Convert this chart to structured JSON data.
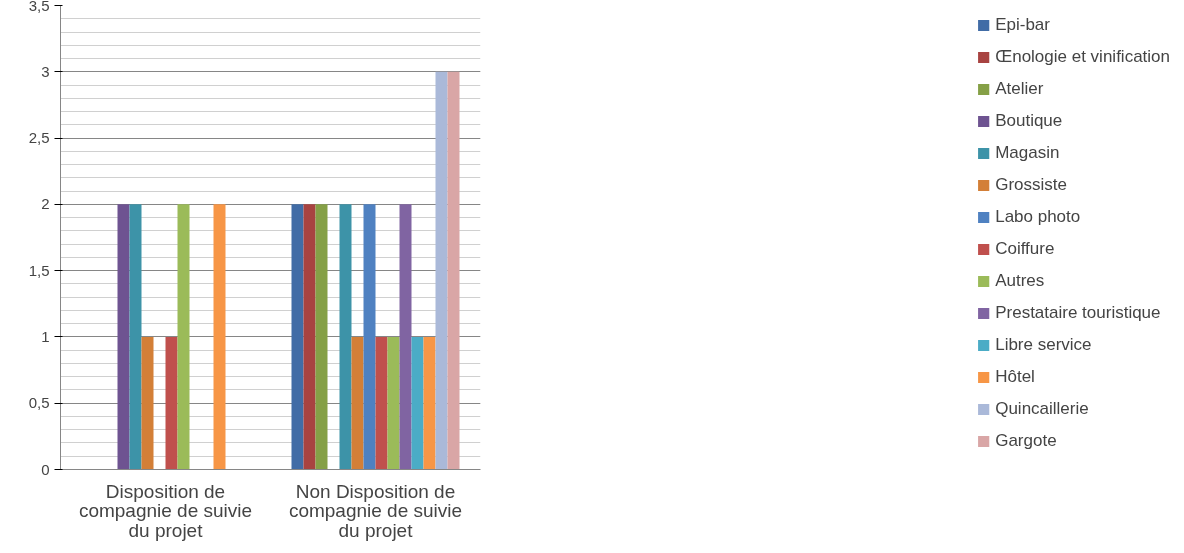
{
  "chart_data": {
    "type": "bar",
    "categories": [
      "Disposition de\ncompagnie de suivie\ndu projet",
      "Non Disposition de\ncompagnie de suivie\ndu projet"
    ],
    "series": [
      {
        "name": "Epi-bar",
        "color": "#416ca6",
        "values": [
          0,
          2
        ]
      },
      {
        "name": "Œnologie et vinification",
        "color": "#a84341",
        "values": [
          0,
          2
        ]
      },
      {
        "name": "Atelier",
        "color": "#85a046",
        "values": [
          0,
          2
        ]
      },
      {
        "name": "Boutique",
        "color": "#6e5391",
        "values": [
          2,
          0
        ]
      },
      {
        "name": "Magasin",
        "color": "#3d93a8",
        "values": [
          2,
          2
        ]
      },
      {
        "name": "Grossiste",
        "color": "#d37f37",
        "values": [
          1,
          1
        ]
      },
      {
        "name": "Labo photo",
        "color": "#4f81c1",
        "values": [
          0,
          2
        ]
      },
      {
        "name": "Coiffure",
        "color": "#c0504d",
        "values": [
          1,
          1
        ]
      },
      {
        "name": "Autres",
        "color": "#9bbb59",
        "values": [
          2,
          1
        ]
      },
      {
        "name": "Prestataire touristique",
        "color": "#8064a2",
        "values": [
          0,
          2
        ]
      },
      {
        "name": "Libre service",
        "color": "#4bacc6",
        "values": [
          0,
          1
        ]
      },
      {
        "name": "Hôtel",
        "color": "#f79646",
        "values": [
          2,
          1
        ]
      },
      {
        "name": "Quincaillerie",
        "color": "#aab9d9",
        "values": [
          0,
          3
        ]
      },
      {
        "name": "Gargote",
        "color": "#d9a6a6",
        "values": [
          0,
          3
        ]
      }
    ],
    "ylim": [
      0,
      3.5
    ],
    "yticks": [
      {
        "value": 0,
        "label": "0"
      },
      {
        "value": 0.5,
        "label": "0,5"
      },
      {
        "value": 1,
        "label": "1"
      },
      {
        "value": 1.5,
        "label": "1,5"
      },
      {
        "value": 2,
        "label": "2"
      },
      {
        "value": 2.5,
        "label": "2,5"
      },
      {
        "value": 3,
        "label": "3"
      },
      {
        "value": 3.5,
        "label": "3,5"
      }
    ],
    "grid": "y",
    "legend": "right"
  }
}
